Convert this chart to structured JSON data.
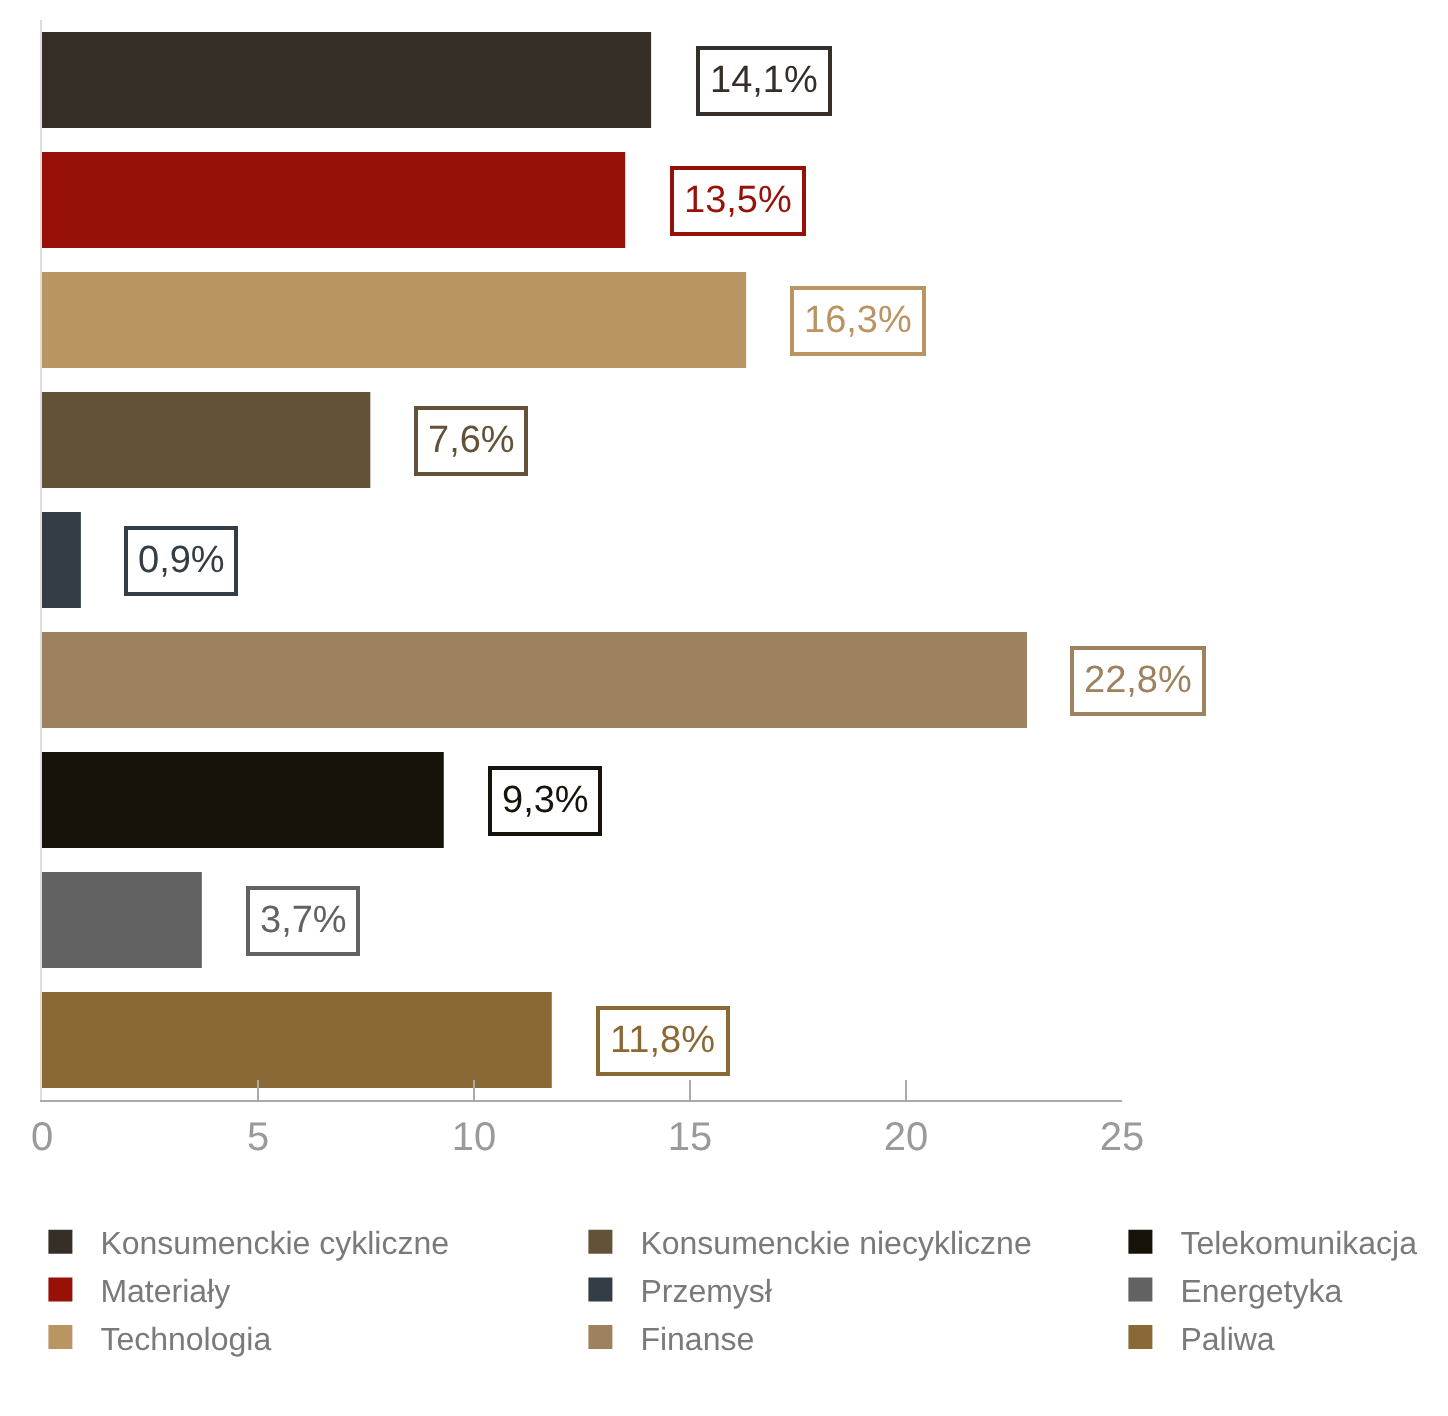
{
  "chart_data": {
    "type": "bar",
    "orientation": "horizontal",
    "categories": [
      null,
      null,
      null,
      null,
      null,
      null,
      null,
      null,
      null
    ],
    "series": [
      {
        "name": "Konsumenckie cykliczne",
        "color": "#352f28",
        "values": [
          14.1,
          null,
          null,
          null,
          null,
          null,
          null,
          null,
          null
        ],
        "value_labels": [
          "14,1%",
          null,
          null,
          null,
          null,
          null,
          null,
          null,
          null
        ]
      },
      {
        "name": "Konsumenckie niecykliczne",
        "color": "#635238",
        "values": [
          null,
          null,
          null,
          7.6,
          null,
          null,
          null,
          null,
          null
        ],
        "value_labels": [
          null,
          null,
          null,
          "7,6%",
          null,
          null,
          null,
          null,
          null
        ]
      },
      {
        "name": "Telekomunikacja",
        "color": "#18130a",
        "values": [
          null,
          null,
          null,
          null,
          null,
          null,
          9.3,
          null,
          null
        ],
        "value_labels": [
          null,
          null,
          null,
          null,
          null,
          null,
          "9,3%",
          null,
          null
        ]
      },
      {
        "name": "Materiały",
        "color": "#981109",
        "values": [
          null,
          13.5,
          null,
          null,
          null,
          null,
          null,
          null,
          null
        ],
        "value_labels": [
          null,
          "13,5%",
          null,
          null,
          null,
          null,
          null,
          null,
          null
        ]
      },
      {
        "name": "Przemysł",
        "color": "#323d45",
        "values": [
          null,
          null,
          null,
          null,
          0.9,
          null,
          null,
          null,
          null
        ],
        "value_labels": [
          null,
          null,
          null,
          null,
          "0,9%",
          null,
          null,
          null,
          null
        ]
      },
      {
        "name": "Energetyka",
        "color": "#626262",
        "values": [
          null,
          null,
          null,
          null,
          null,
          null,
          null,
          3.7,
          null
        ],
        "value_labels": [
          null,
          null,
          null,
          null,
          null,
          null,
          null,
          "3,7%",
          null
        ]
      },
      {
        "name": "Technologia",
        "color": "#b99563",
        "values": [
          null,
          null,
          16.3,
          null,
          null,
          null,
          null,
          null,
          null
        ],
        "value_labels": [
          null,
          null,
          "16,3%",
          null,
          null,
          null,
          null,
          null,
          null
        ]
      },
      {
        "name": "Finanse",
        "color": "#9e815e",
        "values": [
          null,
          null,
          null,
          null,
          null,
          22.8,
          null,
          null,
          null
        ],
        "value_labels": [
          null,
          null,
          null,
          null,
          null,
          "22,8%",
          null,
          null,
          null
        ]
      },
      {
        "name": "Paliwa",
        "color": "#8a6937",
        "values": [
          null,
          null,
          null,
          null,
          null,
          null,
          null,
          null,
          11.8
        ],
        "value_labels": [
          null,
          null,
          null,
          null,
          null,
          null,
          null,
          null,
          "11,8%"
        ]
      }
    ],
    "xlim": [
      0,
      25
    ],
    "xticks": [
      0,
      5,
      10,
      15,
      20,
      25
    ],
    "tick_labels": "x",
    "legend": "bottom"
  }
}
